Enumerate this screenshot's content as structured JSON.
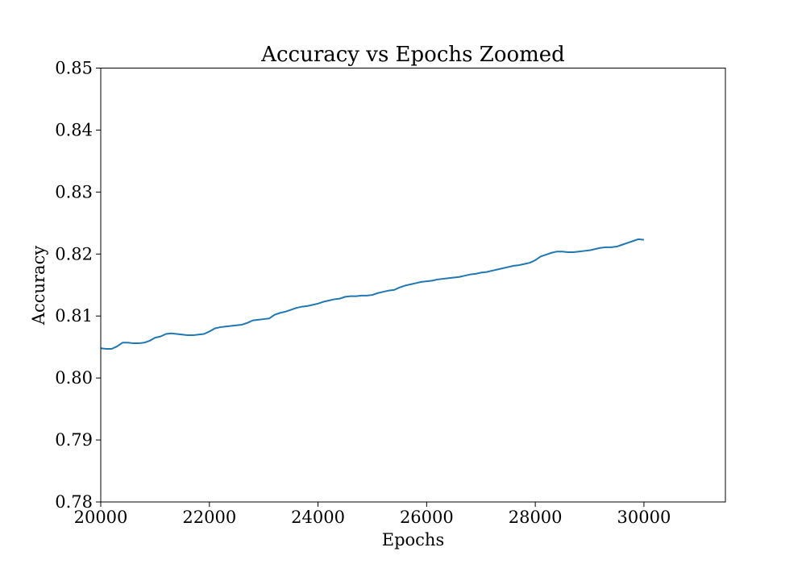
{
  "chart_data": {
    "type": "line",
    "title": "Accuracy vs Epochs Zoomed",
    "xlabel": "Epochs",
    "ylabel": "Accuracy",
    "xlim": [
      20000,
      31500
    ],
    "ylim": [
      0.78,
      0.85
    ],
    "xticks": [
      20000,
      22000,
      24000,
      26000,
      28000,
      30000
    ],
    "xtick_labels": [
      "20000",
      "22000",
      "24000",
      "26000",
      "28000",
      "30000"
    ],
    "yticks": [
      0.78,
      0.79,
      0.8,
      0.81,
      0.82,
      0.83,
      0.84,
      0.85
    ],
    "ytick_labels": [
      "0.78",
      "0.79",
      "0.80",
      "0.81",
      "0.82",
      "0.83",
      "0.84",
      "0.85"
    ],
    "grid": false,
    "series": [
      {
        "color": "#1f77b4",
        "x": [
          20000,
          20100,
          20200,
          20300,
          20400,
          20500,
          20600,
          20700,
          20800,
          20900,
          21000,
          21100,
          21200,
          21300,
          21400,
          21500,
          21600,
          21700,
          21800,
          21900,
          22000,
          22100,
          22200,
          22300,
          22400,
          22500,
          22600,
          22700,
          22800,
          22900,
          23000,
          23100,
          23200,
          23300,
          23400,
          23500,
          23600,
          23700,
          23800,
          23900,
          24000,
          24100,
          24200,
          24300,
          24400,
          24500,
          24600,
          24700,
          24800,
          24900,
          25000,
          25100,
          25200,
          25300,
          25400,
          25500,
          25600,
          25700,
          25800,
          25900,
          26000,
          26100,
          26200,
          26300,
          26400,
          26500,
          26600,
          26700,
          26800,
          26900,
          27000,
          27100,
          27200,
          27300,
          27400,
          27500,
          27600,
          27700,
          27800,
          27900,
          28000,
          28100,
          28200,
          28300,
          28400,
          28500,
          28600,
          28700,
          28800,
          28900,
          29000,
          29100,
          29200,
          29300,
          29400,
          29500,
          29600,
          29700,
          29800,
          29900,
          30000
        ],
        "y": [
          0.8048,
          0.8047,
          0.8047,
          0.8051,
          0.8057,
          0.8057,
          0.8056,
          0.8056,
          0.8057,
          0.806,
          0.8065,
          0.8067,
          0.8071,
          0.8072,
          0.8071,
          0.807,
          0.8069,
          0.8069,
          0.807,
          0.8071,
          0.8075,
          0.808,
          0.8082,
          0.8083,
          0.8084,
          0.8085,
          0.8086,
          0.8089,
          0.8093,
          0.8094,
          0.8095,
          0.8096,
          0.8102,
          0.8105,
          0.8107,
          0.811,
          0.8113,
          0.8115,
          0.8116,
          0.8118,
          0.812,
          0.8123,
          0.8125,
          0.8127,
          0.8128,
          0.8131,
          0.8132,
          0.8132,
          0.8133,
          0.8133,
          0.8134,
          0.8137,
          0.8139,
          0.8141,
          0.8142,
          0.8146,
          0.8149,
          0.8151,
          0.8153,
          0.8155,
          0.8156,
          0.8157,
          0.8159,
          0.816,
          0.8161,
          0.8162,
          0.8163,
          0.8165,
          0.8167,
          0.8168,
          0.817,
          0.8171,
          0.8173,
          0.8175,
          0.8177,
          0.8179,
          0.8181,
          0.8182,
          0.8184,
          0.8186,
          0.819,
          0.8196,
          0.8199,
          0.8202,
          0.8204,
          0.8204,
          0.8203,
          0.8203,
          0.8204,
          0.8205,
          0.8206,
          0.8208,
          0.821,
          0.8211,
          0.8211,
          0.8212,
          0.8215,
          0.8218,
          0.8221,
          0.8224,
          0.8223
        ]
      }
    ]
  }
}
